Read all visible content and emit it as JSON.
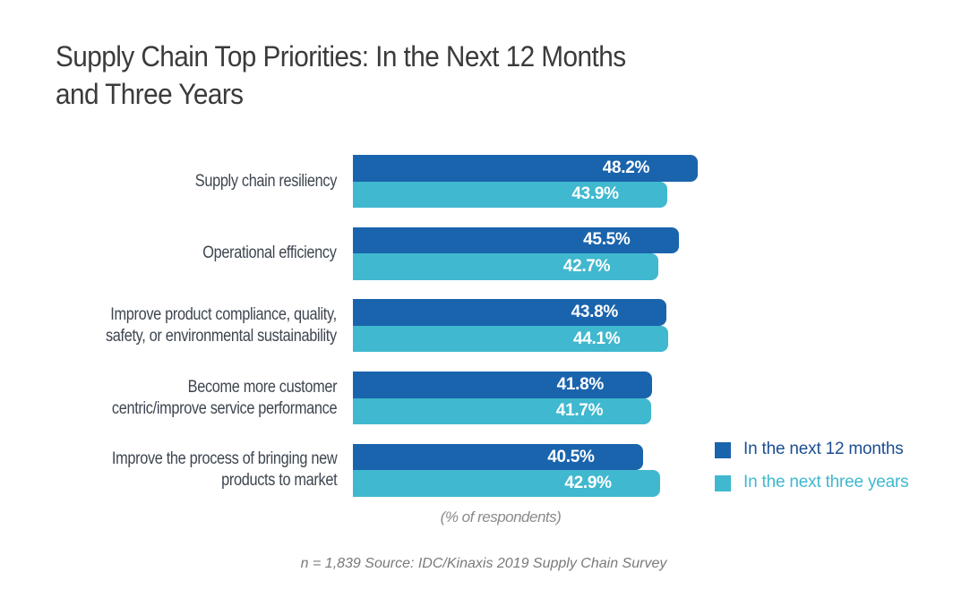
{
  "chart_data": {
    "type": "bar",
    "orientation": "horizontal",
    "title": "Supply Chain Top Priorities: In the Next 12 Months and Three Years",
    "title_lines": [
      "Supply Chain Top Priorities: In the Next 12 Months",
      "and Three Years"
    ],
    "categories": [
      "Supply chain resiliency",
      "Operational efficiency",
      "Improve product compliance, quality, safety, or environmental sustainability",
      "Become more customer centric/improve service performance",
      "Improve the process of bringing new products to market"
    ],
    "category_lines": [
      [
        "Supply chain resiliency"
      ],
      [
        "Operational efficiency"
      ],
      [
        "Improve product compliance, quality,",
        "safety, or environmental sustainability"
      ],
      [
        "Become more customer",
        "centric/improve service performance"
      ],
      [
        "Improve the process of bringing new",
        "products to market"
      ]
    ],
    "series": [
      {
        "name": "In the next 12 months",
        "color": "#1a64ad",
        "values": [
          48.2,
          45.5,
          43.8,
          41.8,
          40.5
        ],
        "labels": [
          "48.2%",
          "45.5%",
          "43.8%",
          "41.8%",
          "40.5%"
        ]
      },
      {
        "name": "In the next three years",
        "color": "#40b8cf",
        "values": [
          43.9,
          42.7,
          44.1,
          41.7,
          42.9
        ],
        "labels": [
          "43.9%",
          "42.7%",
          "44.1%",
          "41.7%",
          "42.9%"
        ]
      }
    ],
    "xlabel": "(% of respondents)",
    "ylabel": "",
    "xlim": [
      0,
      50
    ],
    "grid": false,
    "legend_position": "bottom-right",
    "note": "n = 1,839  Source: IDC/Kinaxis 2019 Supply Chain Survey"
  }
}
